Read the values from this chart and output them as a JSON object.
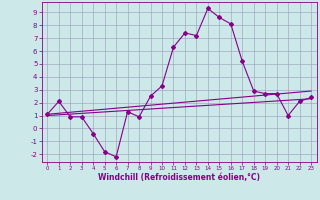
{
  "xlabel": "Windchill (Refroidissement éolien,°C)",
  "background_color": "#cce8e8",
  "grid_color": "#9999bb",
  "line_color": "#880088",
  "xlim": [
    -0.5,
    23.5
  ],
  "ylim": [
    -2.6,
    9.8
  ],
  "xticks": [
    0,
    1,
    2,
    3,
    4,
    5,
    6,
    7,
    8,
    9,
    10,
    11,
    12,
    13,
    14,
    15,
    16,
    17,
    18,
    19,
    20,
    21,
    22,
    23
  ],
  "yticks": [
    -2,
    -1,
    0,
    1,
    2,
    3,
    4,
    5,
    6,
    7,
    8,
    9
  ],
  "main_x": [
    0,
    1,
    2,
    3,
    4,
    5,
    6,
    7,
    8,
    9,
    10,
    11,
    12,
    13,
    14,
    15,
    16,
    17,
    18,
    19,
    20,
    21,
    22,
    23
  ],
  "main_y": [
    1.1,
    2.1,
    0.9,
    0.9,
    -0.4,
    -1.8,
    -2.2,
    1.3,
    0.9,
    2.5,
    3.3,
    6.3,
    7.4,
    7.2,
    9.3,
    8.6,
    8.1,
    5.2,
    2.9,
    2.7,
    2.7,
    1.0,
    2.1,
    2.4
  ],
  "trend1_x": [
    0,
    23
  ],
  "trend1_y": [
    1.1,
    2.9
  ],
  "trend2_x": [
    0,
    23
  ],
  "trend2_y": [
    1.0,
    2.3
  ]
}
